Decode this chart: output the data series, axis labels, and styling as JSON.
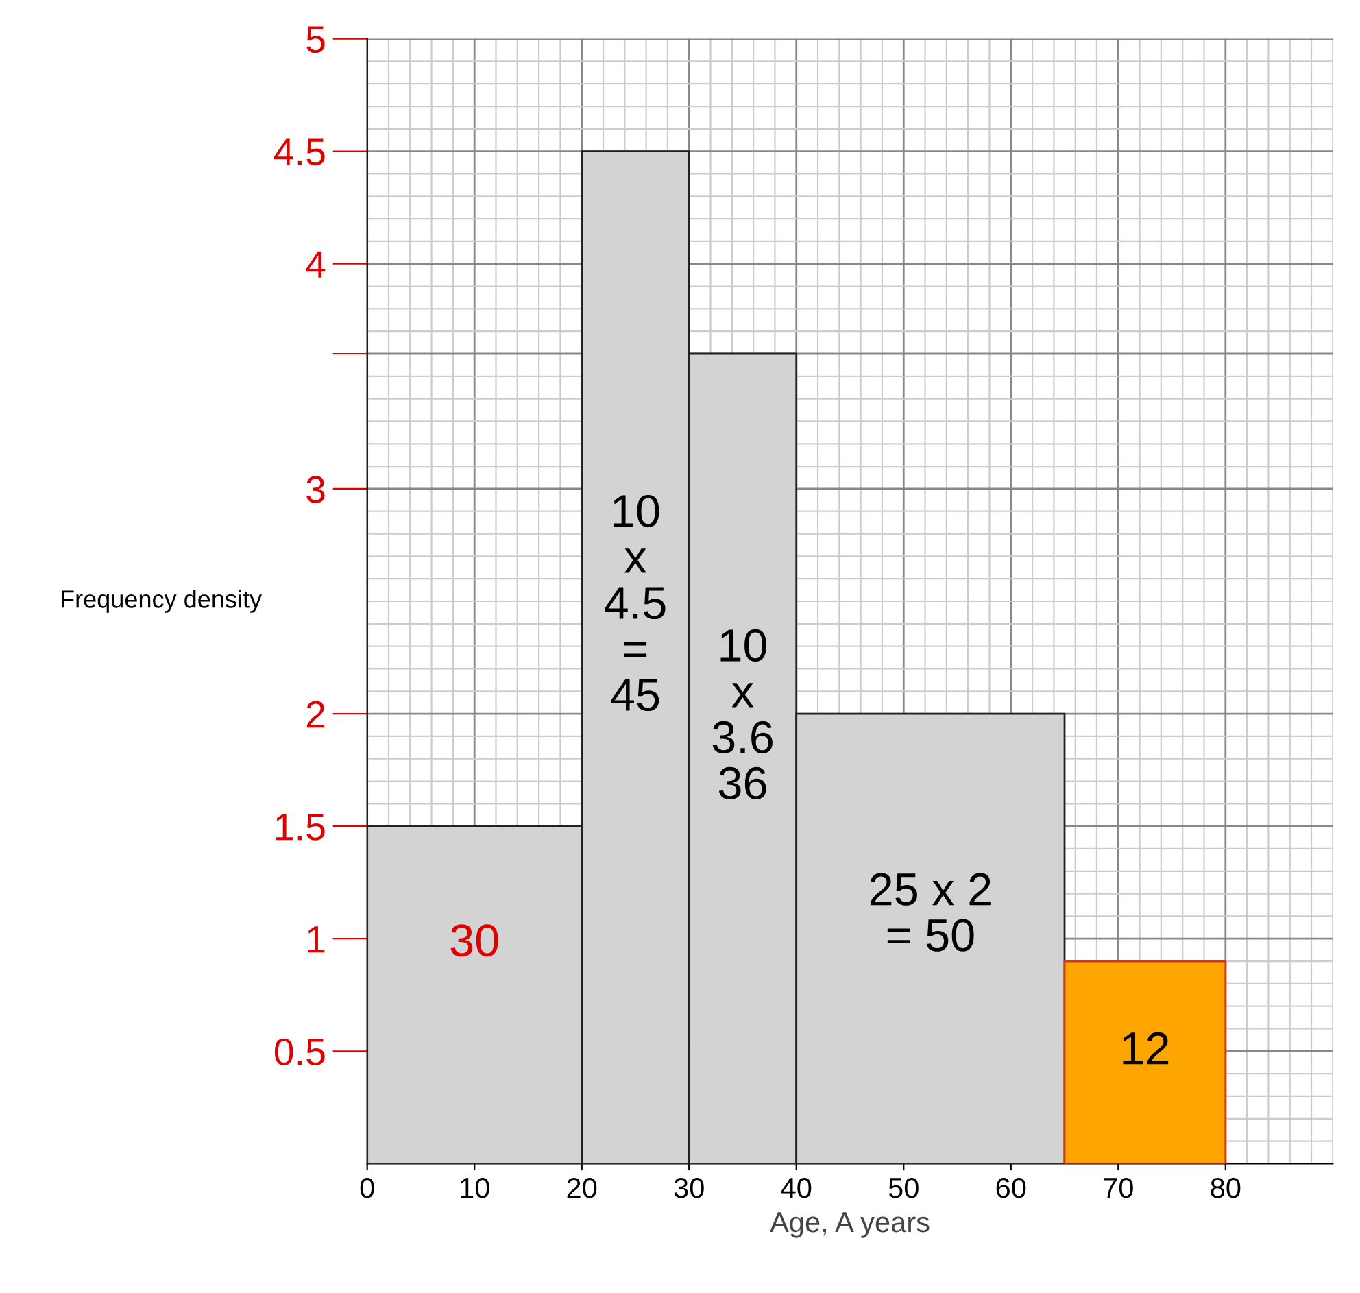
{
  "chart_data": {
    "type": "histogram",
    "xlabel": "Age, A years",
    "ylabel": "Frequency density",
    "bins": [
      0,
      20,
      30,
      40,
      65,
      80
    ],
    "values": [
      1.5,
      4.5,
      3.6,
      2,
      0.9
    ],
    "colors": [
      "#d3d3d3",
      "#d3d3d3",
      "#d3d3d3",
      "#d3d3d3",
      "#ffa500"
    ],
    "xlim": [
      0,
      90
    ],
    "ylim": [
      0,
      5
    ],
    "xticks": [
      0,
      10,
      20,
      30,
      40,
      50,
      60,
      70,
      80
    ],
    "yticks": [
      0.5,
      1,
      1.5,
      2,
      3,
      {
        "value": 3.6,
        "label": null
      },
      4,
      4.5,
      5
    ],
    "grid": true,
    "annotations": [
      "30",
      "10\nx\n4.5\n=\n45",
      "10\nx\n3.6\n36",
      "25 x 2\n= 50",
      "12"
    ]
  }
}
